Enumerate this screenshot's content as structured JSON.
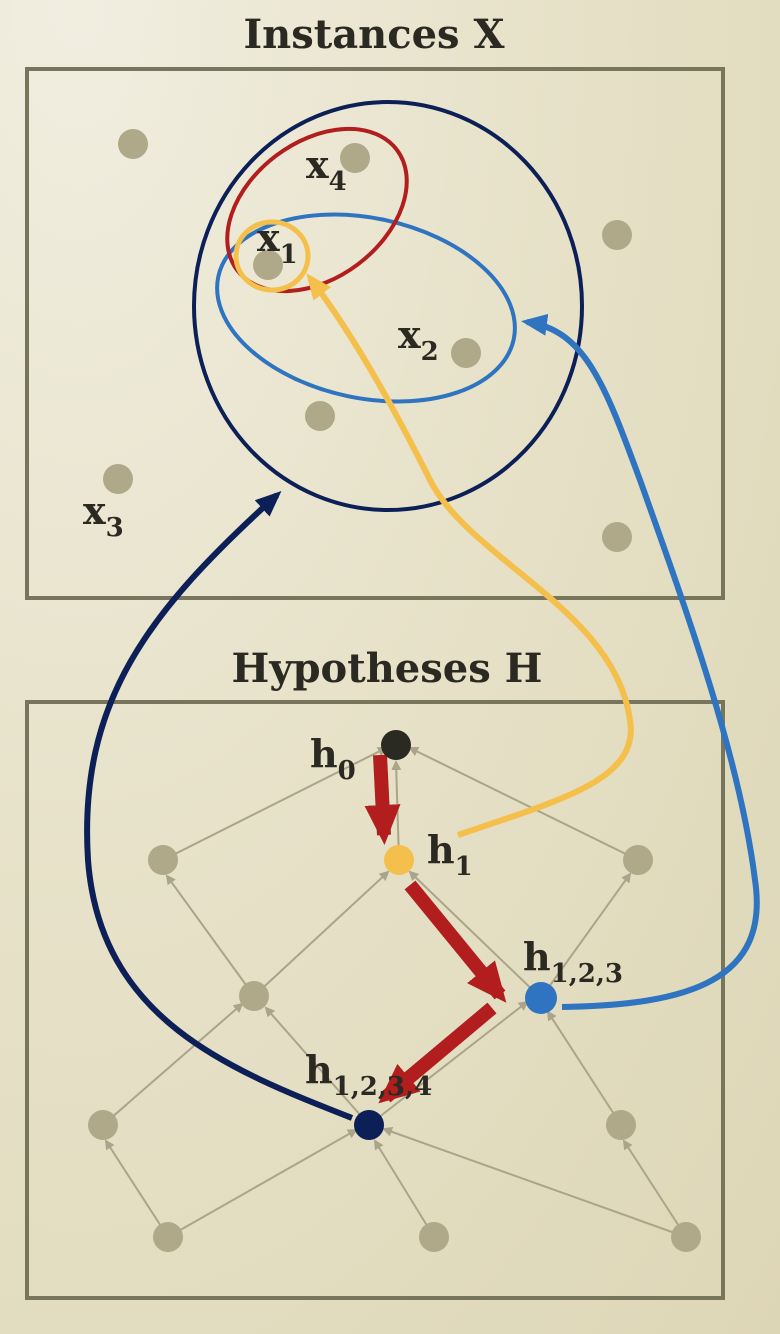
{
  "instances": {
    "title": "Instances X",
    "labels": {
      "x1": {
        "base": "x",
        "sub": "1"
      },
      "x2": {
        "base": "x",
        "sub": "2"
      },
      "x3": {
        "base": "x",
        "sub": "3"
      },
      "x4": {
        "base": "x",
        "sub": "4"
      }
    }
  },
  "hypotheses": {
    "title": "Hypotheses H",
    "labels": {
      "h0": {
        "base": "h",
        "sub": "0"
      },
      "h1": {
        "base": "h",
        "sub": "1"
      },
      "h123": {
        "base": "h",
        "sub": "1,2,3"
      },
      "h1234": {
        "base": "h",
        "sub": "1,2,3,4"
      }
    }
  },
  "colors": {
    "yellow": "#f4bf4a",
    "blue": "#2f74c0",
    "navy": "#0d1f57",
    "red": "#b21d1d",
    "grey_node": "#afa98a",
    "edge": "#aaa58a",
    "black_node": "#2b2a22"
  }
}
